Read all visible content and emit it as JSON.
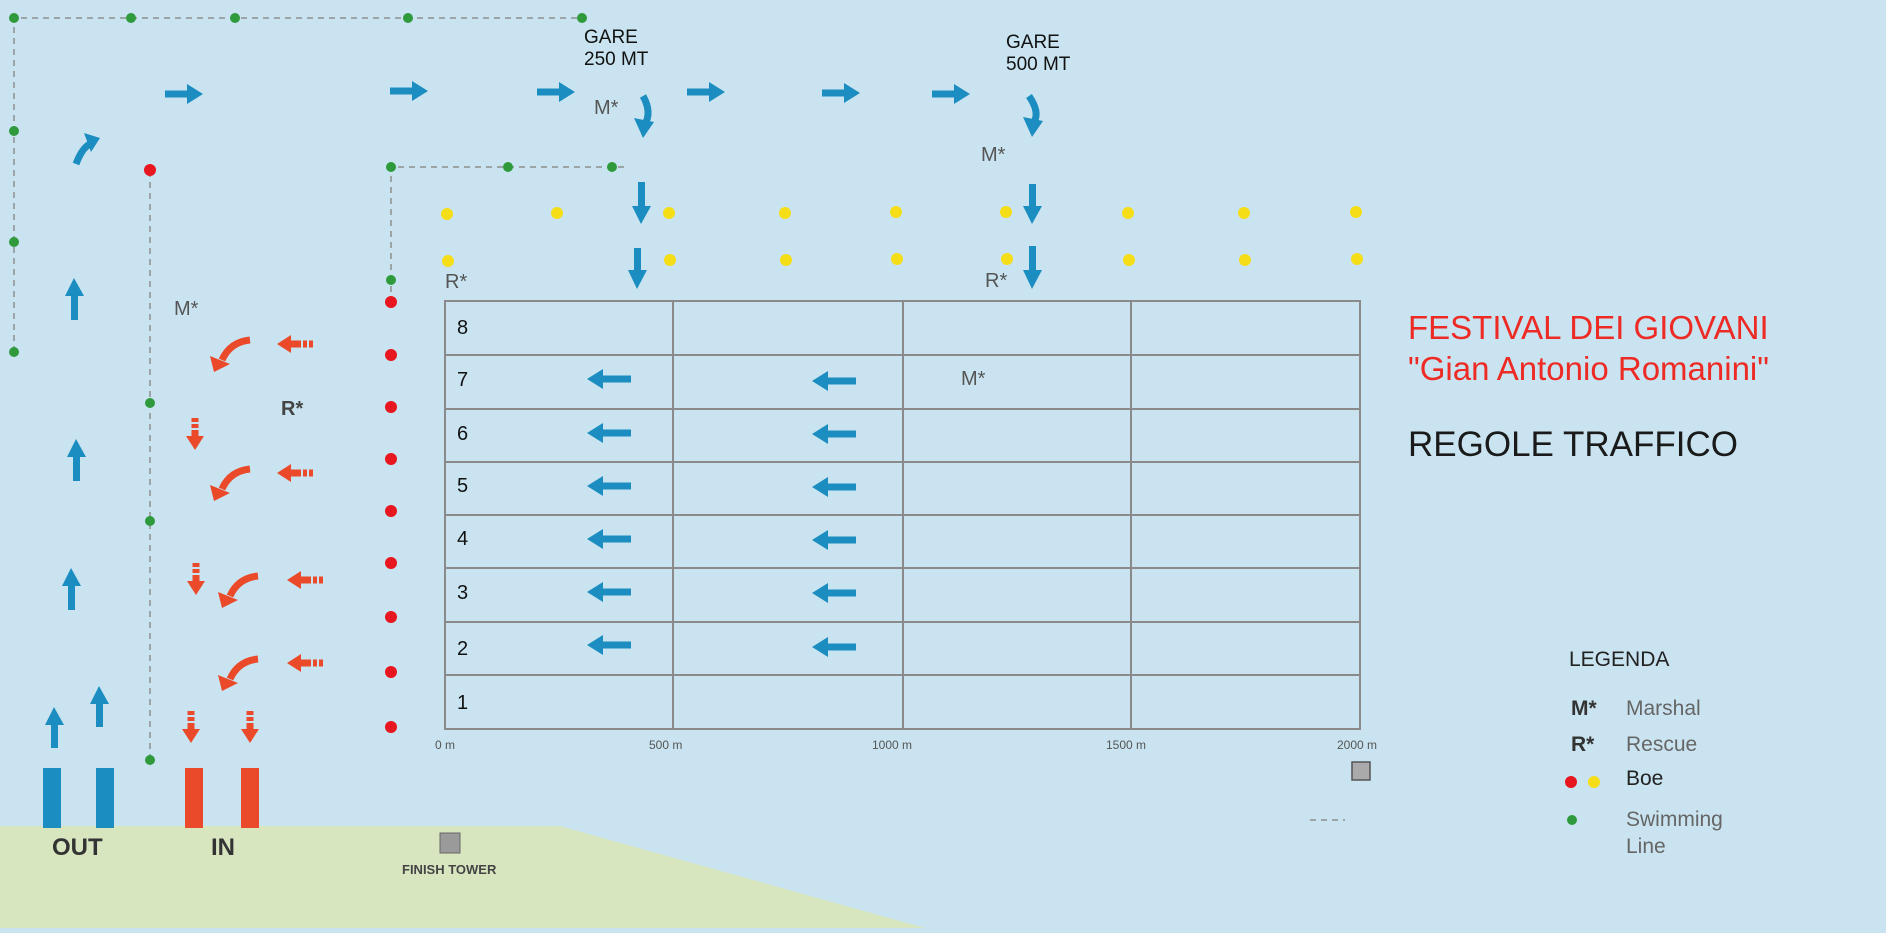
{
  "gare": [
    {
      "line1": "GARE",
      "line2": "250 MT"
    },
    {
      "line1": "GARE",
      "line2": "500 MT"
    }
  ],
  "markers": {
    "marshal": "M*",
    "rescue": "R*"
  },
  "lanes": [
    "8",
    "7",
    "6",
    "5",
    "4",
    "3",
    "2",
    "1"
  ],
  "distance_ticks": [
    "0 m",
    "500 m",
    "1000 m",
    "1500 m",
    "2000 m"
  ],
  "title": {
    "line1": "FESTIVAL DEI GIOVANI",
    "line2": "\"Gian Antonio Romanini\"",
    "line3": "REGOLE TRAFFICO"
  },
  "legend": {
    "heading": "LEGENDA",
    "items": [
      {
        "key": "M*",
        "label": "Marshal"
      },
      {
        "key": "R*",
        "label": "Rescue"
      },
      {
        "label": "Boe"
      },
      {
        "label_line1": "Swimming",
        "label_line2": "Line"
      }
    ]
  },
  "shore": {
    "out": "OUT",
    "in": "IN",
    "finish_tower": "FINISH TOWER"
  },
  "colors": {
    "water": "#c9e4f0",
    "land": "#d8e6c0",
    "blue_arrow": "#1b8dc0",
    "red_arrow": "#ea4a2a",
    "red_buoy": "#e8161f",
    "yellow_buoy": "#f5de17",
    "green_buoy": "#2e9a3c",
    "grid": "#8a8a8a",
    "title_red": "#ee2a24"
  }
}
